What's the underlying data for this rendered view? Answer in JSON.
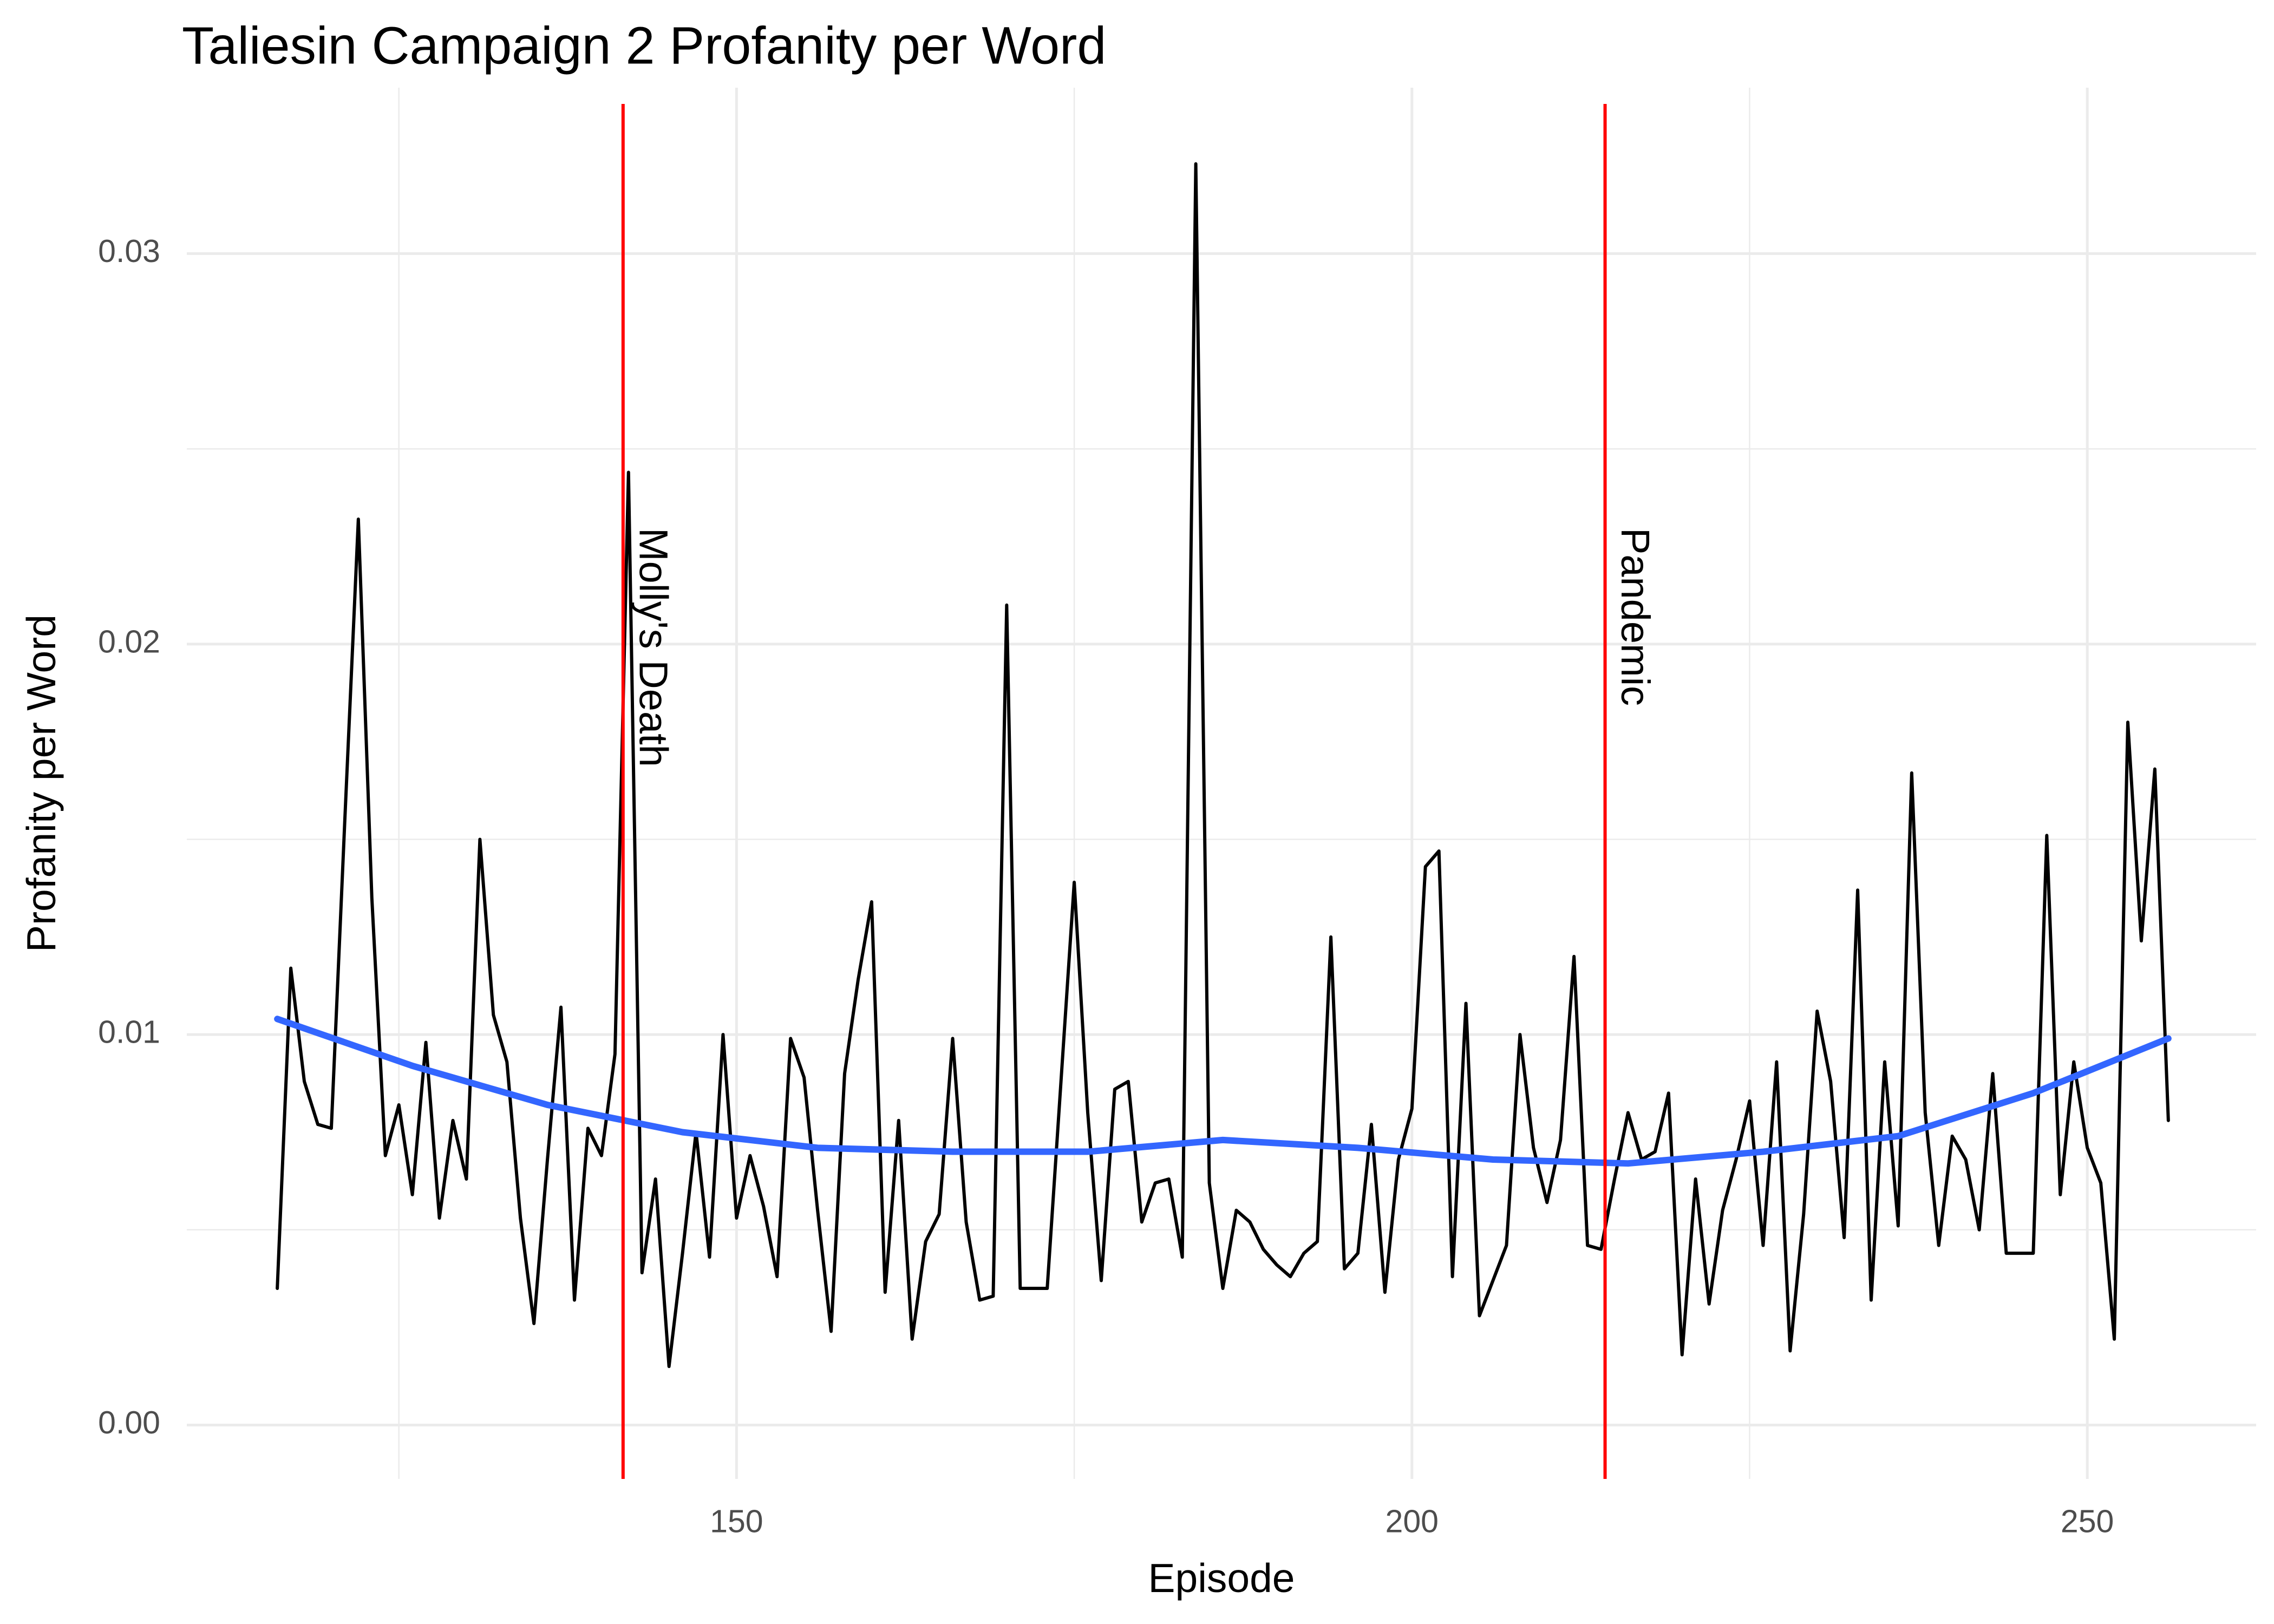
{
  "chart_data": {
    "type": "line",
    "title": "Taliesin Campaign 2 Profanity per Word",
    "x_label": "Episode",
    "y_label": "Profanity per Word",
    "xlim": [
      109.3,
      262.5
    ],
    "ylim": [
      -0.00138,
      0.03425
    ],
    "xticks": [
      150,
      200,
      250
    ],
    "yticks": [
      {
        "value": 0,
        "label": "0.00"
      },
      0.01,
      0.02,
      0.03
    ],
    "x_minor_grid": [
      125,
      175,
      225
    ],
    "y_minor_grid": [
      0.005,
      0.015,
      0.025
    ],
    "grid": true,
    "series": [
      {
        "color": "#000000",
        "x": [
          116,
          117,
          118,
          119,
          120,
          121,
          122,
          123,
          124,
          125,
          126,
          127,
          128,
          129,
          130,
          131,
          132,
          133,
          134,
          135,
          136,
          137,
          138,
          139,
          140,
          141,
          142,
          143,
          144,
          145,
          146,
          147,
          148,
          149,
          150,
          151,
          152,
          153,
          154,
          155,
          156,
          157,
          158,
          159,
          160,
          161,
          162,
          163,
          164,
          165,
          166,
          167,
          168,
          169,
          170,
          171,
          172,
          173,
          174,
          175,
          176,
          177,
          178,
          179,
          180,
          181,
          182,
          183,
          184,
          185,
          186,
          187,
          188,
          189,
          190,
          191,
          192,
          193,
          194,
          195,
          196,
          197,
          198,
          199,
          200,
          201,
          202,
          203,
          204,
          205,
          206,
          207,
          208,
          209,
          210,
          211,
          212,
          213,
          214,
          215,
          216,
          217,
          218,
          219,
          220,
          221,
          222,
          223,
          224,
          225,
          226,
          227,
          228,
          229,
          230,
          231,
          232,
          233,
          234,
          235,
          236,
          237,
          238,
          239,
          240,
          241,
          242,
          243,
          244,
          245,
          246,
          247,
          248,
          249,
          250,
          251,
          252,
          253,
          254,
          255,
          256
        ],
        "values": [
          0.0035,
          0.0117,
          0.0088,
          0.0077,
          0.0076,
          0.0155,
          0.0232,
          0.0135,
          0.0069,
          0.0082,
          0.0059,
          0.0098,
          0.0053,
          0.0078,
          0.0063,
          0.015,
          0.0105,
          0.0093,
          0.0053,
          0.0026,
          0.0068,
          0.0107,
          0.0032,
          0.0076,
          0.0069,
          0.0095,
          0.0244,
          0.0039,
          0.0063,
          0.0015,
          0.0044,
          0.0075,
          0.0043,
          0.01,
          0.0053,
          0.0069,
          0.0056,
          0.0038,
          0.0099,
          0.0089,
          0.0055,
          0.0024,
          0.009,
          0.0114,
          0.0134,
          0.0034,
          0.0078,
          0.0022,
          0.0047,
          0.0054,
          0.0099,
          0.0052,
          0.0032,
          0.0033,
          0.021,
          0.0035,
          0.0035,
          0.0035,
          0.0087,
          0.0139,
          0.008,
          0.0037,
          0.0086,
          0.0088,
          0.0052,
          0.0062,
          0.0063,
          0.0043,
          0.0323,
          0.0062,
          0.0035,
          0.0055,
          0.0052,
          0.0045,
          0.0041,
          0.0038,
          0.0044,
          0.0047,
          0.0125,
          0.004,
          0.0044,
          0.0077,
          0.0034,
          0.0068,
          0.0081,
          0.0143,
          0.0147,
          0.0038,
          0.0108,
          0.0028,
          0.0037,
          0.0046,
          0.01,
          0.0071,
          0.0057,
          0.0073,
          0.012,
          0.0046,
          0.0045,
          0.0063,
          0.008,
          0.0068,
          0.007,
          0.0085,
          0.0018,
          0.0063,
          0.0031,
          0.0055,
          0.0068,
          0.0083,
          0.0046,
          0.0093,
          0.0019,
          0.0054,
          0.0106,
          0.0088,
          0.0048,
          0.0137,
          0.0032,
          0.0093,
          0.0051,
          0.0167,
          0.008,
          0.0046,
          0.0074,
          0.0068,
          0.005,
          0.009,
          0.0044,
          0.0044,
          0.0044,
          0.0151,
          0.0059,
          0.0093,
          0.0071,
          0.0062,
          0.0022,
          0.018,
          0.0124,
          0.0168,
          0.0078
        ],
        "width": 6
      },
      {
        "color": "#3366ff",
        "x": [
          116,
          126,
          136,
          146,
          156,
          166,
          176,
          186,
          196,
          206,
          216,
          226,
          236,
          246,
          256
        ],
        "values": [
          0.0104,
          0.0092,
          0.0082,
          0.0075,
          0.0071,
          0.007,
          0.007,
          0.0073,
          0.0071,
          0.0068,
          0.0067,
          0.007,
          0.0074,
          0.0085,
          0.0099
        ],
        "width": 12
      }
    ],
    "vlines": [
      {
        "x": 141.6,
        "label": "Molly's Death",
        "color": "#ff0000"
      },
      {
        "x": 214.3,
        "label": "Pandemic",
        "color": "#ff0000"
      }
    ]
  }
}
